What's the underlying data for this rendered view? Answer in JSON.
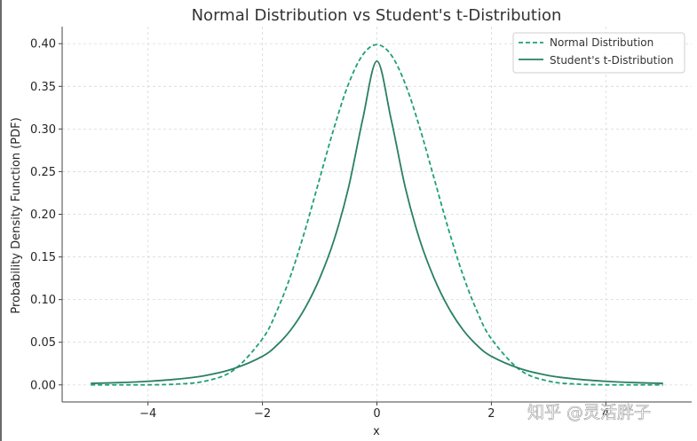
{
  "chart_data": {
    "type": "line",
    "title": "Normal Distribution vs Student's t-Distribution",
    "xlabel": "x",
    "ylabel": "Probability Density Function (PDF)",
    "xlim": [
      -5.5,
      5.5
    ],
    "ylim": [
      -0.02,
      0.42
    ],
    "xticks": [
      -4,
      -2,
      0,
      2,
      4
    ],
    "xtick_labels": [
      "−4",
      "−2",
      "0",
      "2",
      "4"
    ],
    "yticks": [
      0.0,
      0.05,
      0.1,
      0.15,
      0.2,
      0.25,
      0.3,
      0.35,
      0.4
    ],
    "ytick_labels": [
      "0.00",
      "0.05",
      "0.10",
      "0.15",
      "0.20",
      "0.25",
      "0.30",
      "0.35",
      "0.40"
    ],
    "grid": true,
    "legend_position": "top-right",
    "x": [
      -5,
      -4.5,
      -4,
      -3.5,
      -3,
      -2.5,
      -2,
      -1.75,
      -1.5,
      -1.25,
      -1,
      -0.75,
      -0.5,
      -0.25,
      0,
      0.25,
      0.5,
      0.75,
      1,
      1.25,
      1.5,
      1.75,
      2,
      2.5,
      3,
      3.5,
      4,
      4.5,
      5
    ],
    "series": [
      {
        "name": "Normal Distribution",
        "style": "dashed",
        "color": "#1f9e7a",
        "values": [
          0.0,
          0.0,
          0.0001,
          0.0009,
          0.0044,
          0.0175,
          0.054,
          0.0863,
          0.1295,
          0.1826,
          0.242,
          0.3011,
          0.3521,
          0.3867,
          0.3989,
          0.3867,
          0.3521,
          0.3011,
          0.242,
          0.1826,
          0.1295,
          0.0863,
          0.054,
          0.0175,
          0.0044,
          0.0009,
          0.0001,
          0.0,
          0.0
        ]
      },
      {
        "name": "Student's t-Distribution",
        "style": "solid",
        "color": "#2a7f62",
        "values": [
          0.0018,
          0.0027,
          0.0042,
          0.0067,
          0.011,
          0.0191,
          0.0335,
          0.0464,
          0.0649,
          0.0907,
          0.125,
          0.1697,
          0.2302,
          0.3108,
          0.3796,
          0.3108,
          0.2302,
          0.1697,
          0.125,
          0.0907,
          0.0649,
          0.0464,
          0.0335,
          0.0191,
          0.011,
          0.0067,
          0.0042,
          0.0027,
          0.0018
        ]
      }
    ]
  },
  "watermark": {
    "text": "知乎 @灵活胖子"
  }
}
